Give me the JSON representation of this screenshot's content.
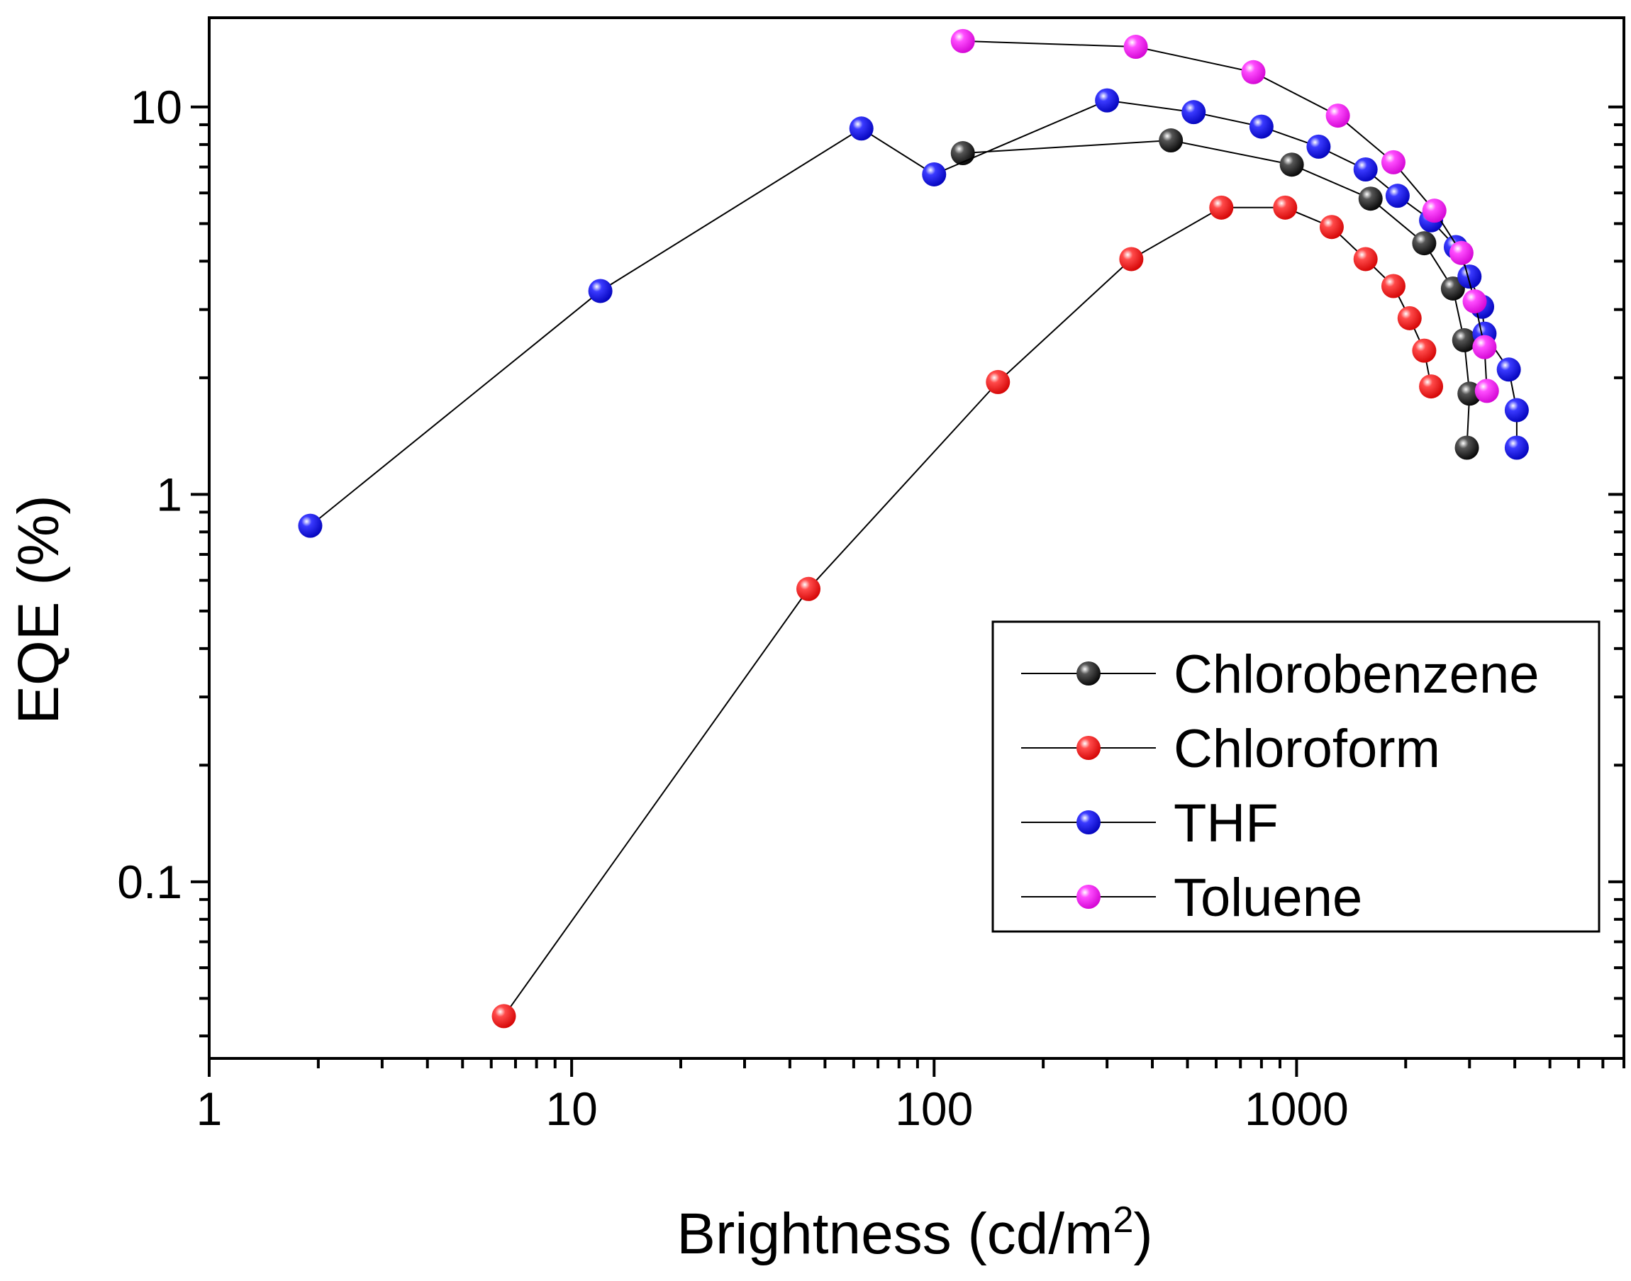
{
  "chart_data": {
    "type": "scatter",
    "title": "",
    "xlabel": "Brightness (cd/m",
    "xlabel_superscript": "2",
    "xlabel_suffix": ")",
    "ylabel": "EQE (%)",
    "xscale": "log",
    "yscale": "log",
    "xlim": [
      1,
      8000
    ],
    "ylim": [
      0.035,
      17
    ],
    "xticks": [
      1,
      10,
      100,
      1000
    ],
    "xtick_labels": [
      "1",
      "10",
      "100",
      "1000"
    ],
    "yticks": [
      0.1,
      1,
      10
    ],
    "ytick_labels": [
      "0.1",
      "1",
      "10"
    ],
    "grid": false,
    "legend_position": "lower-right",
    "series": [
      {
        "name": "Chlorobenzene",
        "color": "#000000",
        "points": [
          [
            120,
            7.6
          ],
          [
            450,
            8.2
          ],
          [
            970,
            7.1
          ],
          [
            1600,
            5.8
          ],
          [
            2250,
            4.45
          ],
          [
            2700,
            3.4
          ],
          [
            2900,
            2.5
          ],
          [
            3000,
            1.82
          ],
          [
            2950,
            1.32
          ]
        ]
      },
      {
        "name": "Chloroform",
        "color": "#ff0000",
        "points": [
          [
            6.5,
            0.045
          ],
          [
            45,
            0.57
          ],
          [
            150,
            1.95
          ],
          [
            350,
            4.05
          ],
          [
            620,
            5.5
          ],
          [
            930,
            5.5
          ],
          [
            1250,
            4.9
          ],
          [
            1550,
            4.05
          ],
          [
            1850,
            3.45
          ],
          [
            2050,
            2.85
          ],
          [
            2250,
            2.35
          ],
          [
            2350,
            1.9
          ]
        ]
      },
      {
        "name": "THF",
        "color": "#0000ee",
        "points": [
          [
            1.9,
            0.83
          ],
          [
            12,
            3.35
          ],
          [
            63,
            8.8
          ],
          [
            100,
            6.7
          ],
          [
            300,
            10.4
          ],
          [
            520,
            9.7
          ],
          [
            800,
            8.9
          ],
          [
            1150,
            7.9
          ],
          [
            1550,
            6.9
          ],
          [
            1900,
            5.9
          ],
          [
            2350,
            5.1
          ],
          [
            2750,
            4.35
          ],
          [
            3000,
            3.65
          ],
          [
            3250,
            3.05
          ],
          [
            3300,
            2.6
          ],
          [
            3850,
            2.1
          ],
          [
            4050,
            1.65
          ],
          [
            4050,
            1.32
          ]
        ]
      },
      {
        "name": "Toluene",
        "color": "#ff00ff",
        "points": [
          [
            120,
            14.8
          ],
          [
            360,
            14.3
          ],
          [
            760,
            12.3
          ],
          [
            1300,
            9.5
          ],
          [
            1850,
            7.2
          ],
          [
            2400,
            5.4
          ],
          [
            2850,
            4.2
          ],
          [
            3100,
            3.15
          ],
          [
            3300,
            2.4
          ],
          [
            3350,
            1.85
          ]
        ]
      }
    ]
  }
}
